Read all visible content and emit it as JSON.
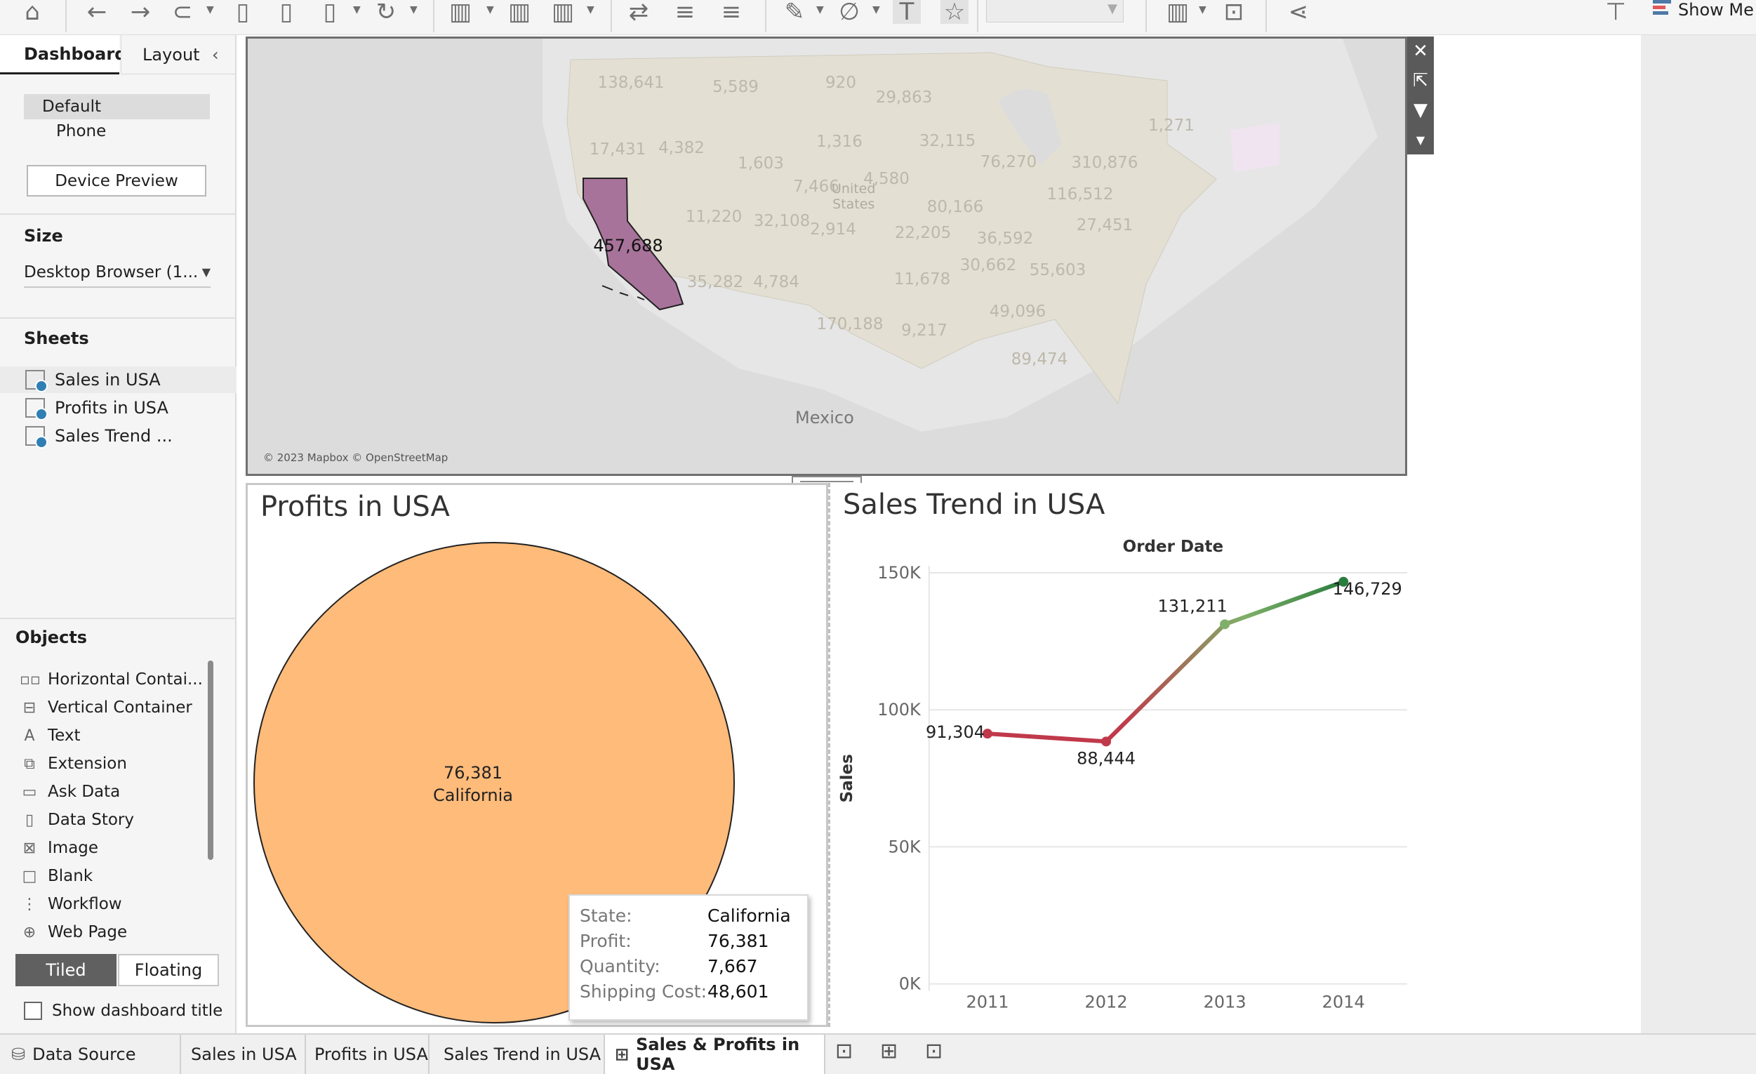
{
  "toolbar": {
    "show_me_label": "Show Me",
    "icons": [
      "home-icon",
      "undo-icon",
      "redo-icon",
      "replay-icon",
      "save-icon",
      "new-data-source-icon",
      "pause-updates-icon",
      "refresh-icon",
      "new-worksheet-icon",
      "duplicate-sheet-icon",
      "clear-sheet-icon",
      "swap-icon",
      "sort-ascending-icon",
      "sort-descending-icon",
      "highlight-icon",
      "group-icon",
      "show-labels-icon",
      "fix-axes-icon",
      "fit-combo",
      "show-cards-icon",
      "presentation-icon",
      "share-icon",
      "pin-icon"
    ]
  },
  "left_panel": {
    "tabs": {
      "dashboard": "Dashboard",
      "layout": "Layout"
    },
    "device": {
      "default": "Default",
      "phone": "Phone",
      "preview_button": "Device Preview"
    },
    "size": {
      "title": "Size",
      "value": "Desktop Browser (1..."
    },
    "sheets": {
      "title": "Sheets",
      "items": [
        "Sales in USA",
        "Profits in USA",
        "Sales Trend ..."
      ]
    },
    "objects": {
      "title": "Objects",
      "items": [
        {
          "label": "Horizontal Contai...",
          "icon": "horizontal-container-icon"
        },
        {
          "label": "Vertical Container",
          "icon": "vertical-container-icon"
        },
        {
          "label": "Text",
          "icon": "text-icon"
        },
        {
          "label": "Extension",
          "icon": "extension-icon"
        },
        {
          "label": "Ask Data",
          "icon": "ask-data-icon"
        },
        {
          "label": "Data Story",
          "icon": "data-story-icon"
        },
        {
          "label": "Image",
          "icon": "image-icon"
        },
        {
          "label": "Blank",
          "icon": "blank-icon"
        },
        {
          "label": "Workflow",
          "icon": "workflow-icon"
        },
        {
          "label": "Web Page",
          "icon": "web-page-icon"
        }
      ]
    },
    "layout_mode": {
      "tiled": "Tiled",
      "floating": "Floating"
    },
    "show_dashboard_title": "Show dashboard title"
  },
  "map": {
    "highlight_state": "California",
    "highlight_color": "#a8739b",
    "highlight_value": "457,688",
    "mexico_label": "Mexico",
    "us_label_line1": "United",
    "us_label_line2": "States",
    "credit": "© 2023 Mapbox © OpenStreetMap",
    "state_values": [
      "138,641",
      "5,589",
      "920",
      "29,863",
      "1,271",
      "17,431",
      "4,382",
      "1,316",
      "32,115",
      "1,603",
      "76,270",
      "310,876",
      "7,466",
      "4,580",
      "116,512",
      "11,220",
      "32,108",
      "80,166",
      "2,914",
      "22,205",
      "36,592",
      "27,451",
      "35,282",
      "4,784",
      "30,662",
      "55,603",
      "11,678",
      "49,096",
      "170,188",
      "9,217",
      "89,474"
    ]
  },
  "profits_view": {
    "title": "Profits in USA",
    "pie_color": "#ffbb7a",
    "slice_value": "76,381",
    "slice_label": "California",
    "tooltip": {
      "state_key": "State:",
      "state_val": "California",
      "profit_key": "Profit:",
      "profit_val": "76,381",
      "quantity_key": "Quantity:",
      "quantity_val": "7,667",
      "shipping_key": "Shipping Cost:",
      "shipping_val": "48,601"
    }
  },
  "sales_trend_view": {
    "title": "Sales Trend in USA"
  },
  "chart_data": {
    "type": "line",
    "title": "",
    "xlabel": "Order Date",
    "ylabel": "Sales",
    "x": [
      "2011",
      "2012",
      "2013",
      "2014"
    ],
    "series": [
      {
        "values": [
          91304,
          88444,
          131211,
          146729
        ]
      }
    ],
    "data_labels": [
      "91,304",
      "88,444",
      "131,211",
      "146,729"
    ],
    "ylim": [
      0,
      150000
    ],
    "yticks": [
      0,
      50000,
      100000,
      150000
    ],
    "ytick_labels": [
      "0K",
      "50K",
      "100K",
      "150K"
    ],
    "color_low": "#c0394b",
    "color_high": "#2a7d3d",
    "grid": true
  },
  "bottom_tabs": {
    "data_source": "Data Source",
    "tabs": [
      "Sales in USA",
      "Profits in USA",
      "Sales Trend in USA",
      "Sales & Profits in USA"
    ],
    "active": "Sales & Profits in USA"
  }
}
